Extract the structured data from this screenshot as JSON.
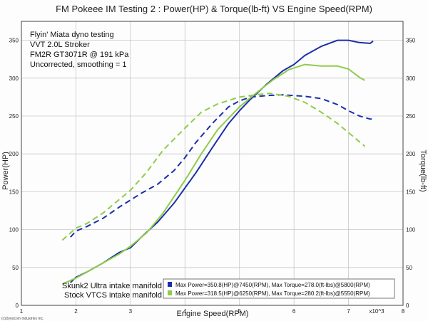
{
  "chart_data": {
    "type": "line",
    "title": "FM Pokeee IM Testing 2 : Power(HP) & Torque(lb-ft) VS Engine Speed(RPM)",
    "xlabel": "Engine Speed(RPM)",
    "x_multiplier_label": "x10^3",
    "ylabel_left": "Power(HP)",
    "ylabel_right": "Torque(lb-ft)",
    "xlim": [
      1,
      8
    ],
    "ylim": [
      0,
      375
    ],
    "x_ticks": [
      "1",
      "2",
      "3",
      "4",
      "5",
      "6",
      "7",
      "8"
    ],
    "y_ticks": [
      "0",
      "50",
      "100",
      "150",
      "200",
      "250",
      "300",
      "350"
    ],
    "grid": true,
    "annotation_lines": [
      "Flyin' Miata dyno testing",
      "VVT 2.0L Stroker",
      "FM2R GT3071R @ 191 kPa",
      "Uncorrected, smoothing = 1"
    ],
    "legend_position": "bottom-right",
    "series": [
      {
        "name": "Skunk2 Ultra intake manifold",
        "summary": "Max Power=350.8(HP)@7450(RPM), Max Torque=278.0(ft-lbs)@5800(RPM)",
        "color": "#1a2fa8",
        "power": {
          "x": [
            1.9,
            2.0,
            2.2,
            2.5,
            2.8,
            3.0,
            3.2,
            3.5,
            3.8,
            4.0,
            4.2,
            4.5,
            4.8,
            5.0,
            5.2,
            5.5,
            5.8,
            6.0,
            6.2,
            6.5,
            6.8,
            7.0,
            7.2,
            7.4,
            7.45
          ],
          "values": [
            30,
            37,
            44,
            56,
            70,
            76,
            90,
            110,
            135,
            155,
            175,
            208,
            240,
            257,
            272,
            292,
            310,
            318,
            330,
            342,
            350,
            350,
            347,
            346,
            349
          ]
        },
        "torque": {
          "x": [
            1.9,
            2.0,
            2.2,
            2.5,
            2.8,
            3.0,
            3.2,
            3.5,
            3.8,
            4.0,
            4.2,
            4.5,
            4.8,
            5.0,
            5.2,
            5.5,
            5.8,
            6.0,
            6.2,
            6.5,
            6.8,
            7.0,
            7.2,
            7.4,
            7.45
          ],
          "values": [
            90,
            98,
            104,
            115,
            130,
            139,
            148,
            160,
            178,
            195,
            215,
            240,
            262,
            270,
            275,
            277,
            278,
            277,
            276,
            273,
            265,
            257,
            250,
            246,
            246
          ]
        }
      },
      {
        "name": "Stock VTCS intake manifold",
        "summary": "Max Power=318.5(HP)@6250(RPM), Max Torque=280.2(ft-lbs)@5550(RPM)",
        "color": "#8fcc4a",
        "power": {
          "x": [
            1.75,
            2.0,
            2.2,
            2.5,
            2.8,
            3.0,
            3.3,
            3.6,
            4.0,
            4.3,
            4.6,
            5.0,
            5.3,
            5.6,
            5.9,
            6.2,
            6.5,
            6.8,
            7.0,
            7.2,
            7.3
          ],
          "values": [
            28,
            36,
            44,
            56,
            68,
            78,
            96,
            122,
            165,
            200,
            232,
            262,
            280,
            297,
            311,
            318,
            316,
            316,
            312,
            301,
            297
          ]
        },
        "torque": {
          "x": [
            1.75,
            2.0,
            2.2,
            2.5,
            2.8,
            3.0,
            3.3,
            3.6,
            4.0,
            4.3,
            4.6,
            5.0,
            5.3,
            5.55,
            5.9,
            6.2,
            6.5,
            6.8,
            7.0,
            7.2,
            7.3
          ],
          "values": [
            86,
            102,
            108,
            122,
            140,
            152,
            176,
            205,
            234,
            255,
            266,
            275,
            278,
            280,
            276,
            268,
            255,
            240,
            228,
            216,
            210
          ]
        }
      }
    ],
    "copyright": "(c)Dynocom Industries Inc."
  }
}
